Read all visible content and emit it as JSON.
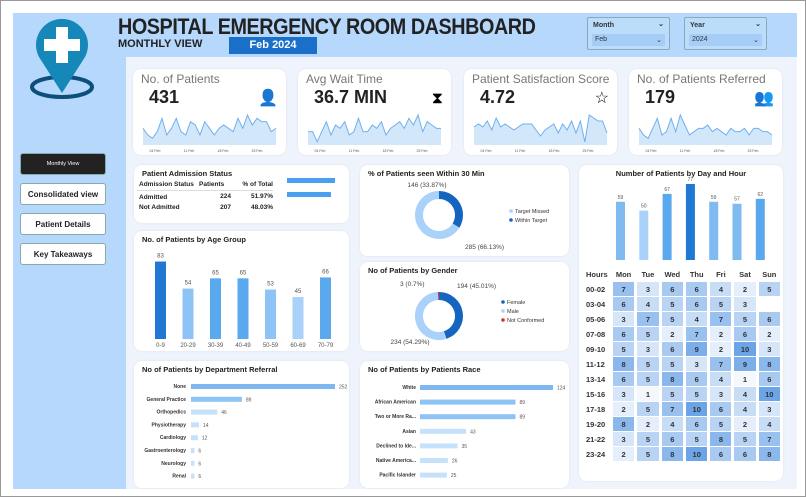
{
  "header": {
    "title": "HOSPITAL EMERGENCY ROOM DASHBOARD",
    "subtitle": "MONTHLY VIEW",
    "period_badge": "Feb 2024"
  },
  "slicers": {
    "month": {
      "label": "Month",
      "value": "Feb"
    },
    "year": {
      "label": "Year",
      "value": "2024"
    }
  },
  "nav": {
    "items": [
      "Monthly View",
      "Consolidated view",
      "Patient Details",
      "Key Takeaways"
    ],
    "active": 0
  },
  "kpis": [
    {
      "label": "No. of Patients",
      "value": "431",
      "icon": "patient-icon",
      "trend": [
        5,
        3,
        2,
        4,
        8,
        3,
        5,
        8,
        4,
        3,
        7,
        6,
        3,
        7,
        5,
        3,
        5,
        6,
        5,
        4,
        8,
        5,
        9,
        6,
        8,
        7,
        7,
        4,
        5
      ]
    },
    {
      "label": "Avg Wait Time",
      "value": "36.7 MIN",
      "icon": "hourglass-icon",
      "trend": [
        4,
        4,
        1,
        4,
        7,
        3,
        6,
        5,
        7,
        3,
        4,
        8,
        4,
        4,
        6,
        5,
        7,
        3,
        5,
        6,
        7,
        5,
        8,
        6,
        9,
        4,
        7,
        6,
        5,
        5
      ]
    },
    {
      "label": "Patient Satisfaction Score",
      "value": "4.72",
      "icon": "rating-icon",
      "trend": [
        6,
        7,
        6,
        8,
        5,
        9,
        6,
        7,
        6,
        5,
        6,
        7,
        7,
        7,
        5,
        3,
        5,
        6,
        7,
        4,
        7,
        5,
        8,
        4,
        8,
        1,
        10,
        9,
        8,
        8,
        4
      ]
    },
    {
      "label": "No. of Patients Referred",
      "value": "179",
      "icon": "referral-icon",
      "trend": [
        5,
        3,
        2,
        5,
        8,
        3,
        4,
        8,
        4,
        9,
        6,
        3,
        4,
        5,
        5,
        6,
        4,
        5,
        4,
        3,
        5,
        4,
        4,
        5,
        3,
        5,
        5,
        4,
        4,
        3
      ]
    }
  ],
  "kpi_axis": [
    "04 Feb",
    "11 Feb",
    "18 Feb",
    "25 Feb"
  ],
  "admission": {
    "title": "Patient Admission Status",
    "columns": [
      "Admission Status",
      "Patients",
      "% of Total"
    ],
    "rows": [
      [
        "Admitted",
        "224",
        "51.97%"
      ],
      [
        "Not Admitted",
        "207",
        "48.03%"
      ]
    ],
    "bar_values": [
      224,
      207
    ]
  },
  "colors": {
    "dark": "#1f78d1",
    "mid": "#5aa8ee",
    "light": "#a9d1fa",
    "accent": "#1565c0"
  },
  "chart_data": [
    {
      "type": "bar",
      "title": "No. of Patients by Age Group",
      "categories": [
        "0-9",
        "20-29",
        "30-39",
        "40-49",
        "50-59",
        "60-69",
        "70-79"
      ],
      "values": [
        83,
        54,
        65,
        65,
        53,
        45,
        66
      ]
    },
    {
      "type": "pie",
      "title": "% of Patients seen Within 30 Min",
      "slices": [
        {
          "name": "Target Missed",
          "value": 285,
          "label": "285 (66.13%)"
        },
        {
          "name": "Within Target",
          "value": 146,
          "label": "146 (33.87%)"
        }
      ]
    },
    {
      "type": "pie",
      "title": "No of Patients by Gender",
      "slices": [
        {
          "name": "Female",
          "value": 194,
          "label": "194 (45.01%)"
        },
        {
          "name": "Male",
          "value": 234,
          "label": "234 (54.29%)"
        },
        {
          "name": "Not Conformed",
          "value": 3,
          "label": "3 (0.7%)"
        }
      ]
    },
    {
      "type": "bar",
      "title": "No of Patients by Department Referral",
      "categories": [
        "None",
        "General Practice",
        "Orthopedics",
        "Physiotherapy",
        "Cardiology",
        "Gastroenterology",
        "Neurology",
        "Renal"
      ],
      "values": [
        252,
        89,
        46,
        14,
        12,
        6,
        6,
        6
      ]
    },
    {
      "type": "bar",
      "title": "No of Patients by Patients Race",
      "categories": [
        "White",
        "African American",
        "Two or More Ra...",
        "Asian",
        "Declined to Ide...",
        "Native America...",
        "Pacific Islander"
      ],
      "values": [
        124,
        89,
        89,
        43,
        35,
        26,
        25
      ]
    },
    {
      "type": "bar",
      "title": "Number of Patients by Day and Hour",
      "categories": [
        "Mon",
        "Tue",
        "Wed",
        "Thu",
        "Fri",
        "Sat",
        "Sun"
      ],
      "values": [
        59,
        50,
        67,
        77,
        59,
        57,
        62
      ]
    },
    {
      "type": "heatmap",
      "row_header": "Hours",
      "rows": [
        "00-02",
        "03-04",
        "05-06",
        "07-08",
        "09-10",
        "11-12",
        "13-14",
        "15-16",
        "17-18",
        "19-20",
        "21-22",
        "23-24"
      ],
      "columns": [
        "Mon",
        "Tue",
        "Wed",
        "Thu",
        "Fri",
        "Sat",
        "Sun"
      ],
      "values": [
        [
          7,
          3,
          6,
          6,
          4,
          2,
          5
        ],
        [
          6,
          4,
          5,
          6,
          5,
          3,
          null
        ],
        [
          3,
          7,
          5,
          4,
          7,
          5,
          6
        ],
        [
          6,
          5,
          2,
          7,
          2,
          6,
          2
        ],
        [
          5,
          3,
          6,
          9,
          2,
          10,
          3
        ],
        [
          8,
          5,
          5,
          3,
          7,
          9,
          8
        ],
        [
          6,
          5,
          8,
          6,
          4,
          1,
          6
        ],
        [
          3,
          1,
          5,
          5,
          3,
          4,
          10
        ],
        [
          2,
          5,
          7,
          10,
          6,
          4,
          3
        ],
        [
          8,
          2,
          4,
          6,
          5,
          2,
          4
        ],
        [
          3,
          5,
          6,
          5,
          8,
          5,
          7
        ],
        [
          2,
          5,
          8,
          10,
          6,
          6,
          8
        ]
      ]
    }
  ]
}
